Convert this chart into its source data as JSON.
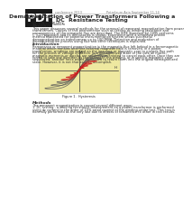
{
  "title_line1": "Demagnetization of Power Transformers Following a",
  "title_line2": "DC  Resistance Testing",
  "pdf_label": "PDF",
  "header_left": "conference 2013",
  "header_right": "Petroleum Asia September 11-14",
  "author_line1": "Dr. eng. Eakie Levy",
  "author_line2": "IEC Power,  Ranilum",
  "section_abstract": "Abstract",
  "abstract_text": "This paper discusses several methods for the removal of remanent magnetization from power\ntransformers. Causes of this phenomenon such as testing dc winding resistance and\nconsequences of the remanent flux are described. The IEEE Standard 62-1995 performs\nC 3-13 approach and its deficiencies is shown. Experience with a simplified proven\nmethod elaborated for powerful instrumentation system shows successful\ndemagnetization on transformers up to 1000MVA. Detection and evaluation of\ndemagnetization process using flux and other techniques is explained.",
  "section_intro": "Introduction",
  "intro_text": "Remanence or remanent magnetization is the magnetic flux left behind in a ferromagnetic\nmaterial which remains after the external magnetic field is removed. In a power\ntransformer, windings are wound on the iron core or magnetic core to provide flux path\nfor the process of voltage induction. In a demagnetized state of the core all macro-\nmagnetic moments or dipoles are randomly orientated to cancel each other. Once they are\nforced to take one direction by the current in the winding, or in specific magnetic case\nsequenced, another force would be needed to return them into the original demagnetized\nstate. However, it is not that easy to accomplish.",
  "figure_caption": "Figure 1.  Hysteresis",
  "section_methods": "Methods",
  "methods_text": "The remanent magnetization is caused several different ways:\n1. DC testing - a winding resistance measurement on a power transformer is performed\nusing dc current to the order of 10% rated current of the winding under test. This test is\nnormally performed as the very last due to effects of remanence to other in test results.",
  "page_bg": "#ffffff",
  "text_color": "#2a2a2a",
  "header_color": "#777777",
  "pdf_bg": "#1a1a1a",
  "pdf_text": "#ffffff",
  "figure_bg": "#eee8a0",
  "hysteresis_outer_color": "#555555",
  "hysteresis_inner_color": "#cc2222",
  "title_fontsize": 4.5,
  "body_fontsize": 2.8,
  "header_fontsize": 2.5,
  "section_fontsize": 3.2
}
